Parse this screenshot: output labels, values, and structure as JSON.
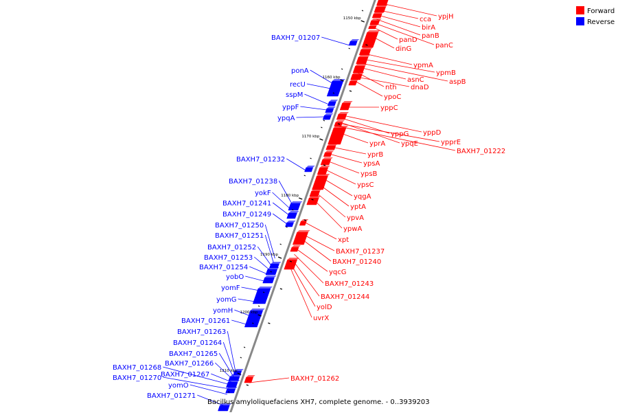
{
  "caption": "Bacillus amyloliquefaciens XH7, complete genome. - 0..3939203",
  "legend": {
    "forward_label": "Forward",
    "reverse_label": "Reverse",
    "forward_color": "#ff0000",
    "reverse_color": "#0000ff"
  },
  "colors": {
    "forward": "#ff0000",
    "reverse": "#0000ff",
    "axis": "#888888"
  },
  "ticks": [
    "1150 kbp",
    "1160 kbp",
    "1170 kbp",
    "1180 kbp",
    "1190 kbp",
    "1200 kbp",
    "1210 kbp"
  ],
  "forward_labels": [
    "cca",
    "ypjH",
    "birA",
    "panB",
    "panD",
    "panC",
    "dinG",
    "ypmA",
    "ypmB",
    "asnC",
    "aspB",
    "nth",
    "dnaD",
    "ypoC",
    "yppC",
    "yppD",
    "yppG",
    "ypprE",
    "yprA",
    "ypqE",
    "BAXH7_01222",
    "yprB",
    "ypsA",
    "ypsB",
    "ypsC",
    "yqgA",
    "yptA",
    "ypvA",
    "ypwA",
    "xpt",
    "BAXH7_01237",
    "BAXH7_01240",
    "yqcG",
    "BAXH7_01243",
    "BAXH7_01244",
    "yolD",
    "uvrX",
    "BAXH7_01262"
  ],
  "reverse_labels": [
    "BAXH7_01207",
    "ponA",
    "recU",
    "sspM",
    "yppF",
    "ypqA",
    "BAXH7_01232",
    "BAXH7_01238",
    "yokF",
    "BAXH7_01241",
    "BAXH7_01249",
    "BAXH7_01250",
    "BAXH7_01251",
    "BAXH7_01252",
    "BAXH7_01253",
    "BAXH7_01254",
    "yobO",
    "yomF",
    "yomG",
    "yomH",
    "BAXH7_01261",
    "BAXH7_01263",
    "BAXH7_01264",
    "BAXH7_01265",
    "BAXH7_01266",
    "BAXH7_01267",
    "BAXH7_01268",
    "BAXH7_01270",
    "yomO",
    "BAXH7_01271"
  ]
}
